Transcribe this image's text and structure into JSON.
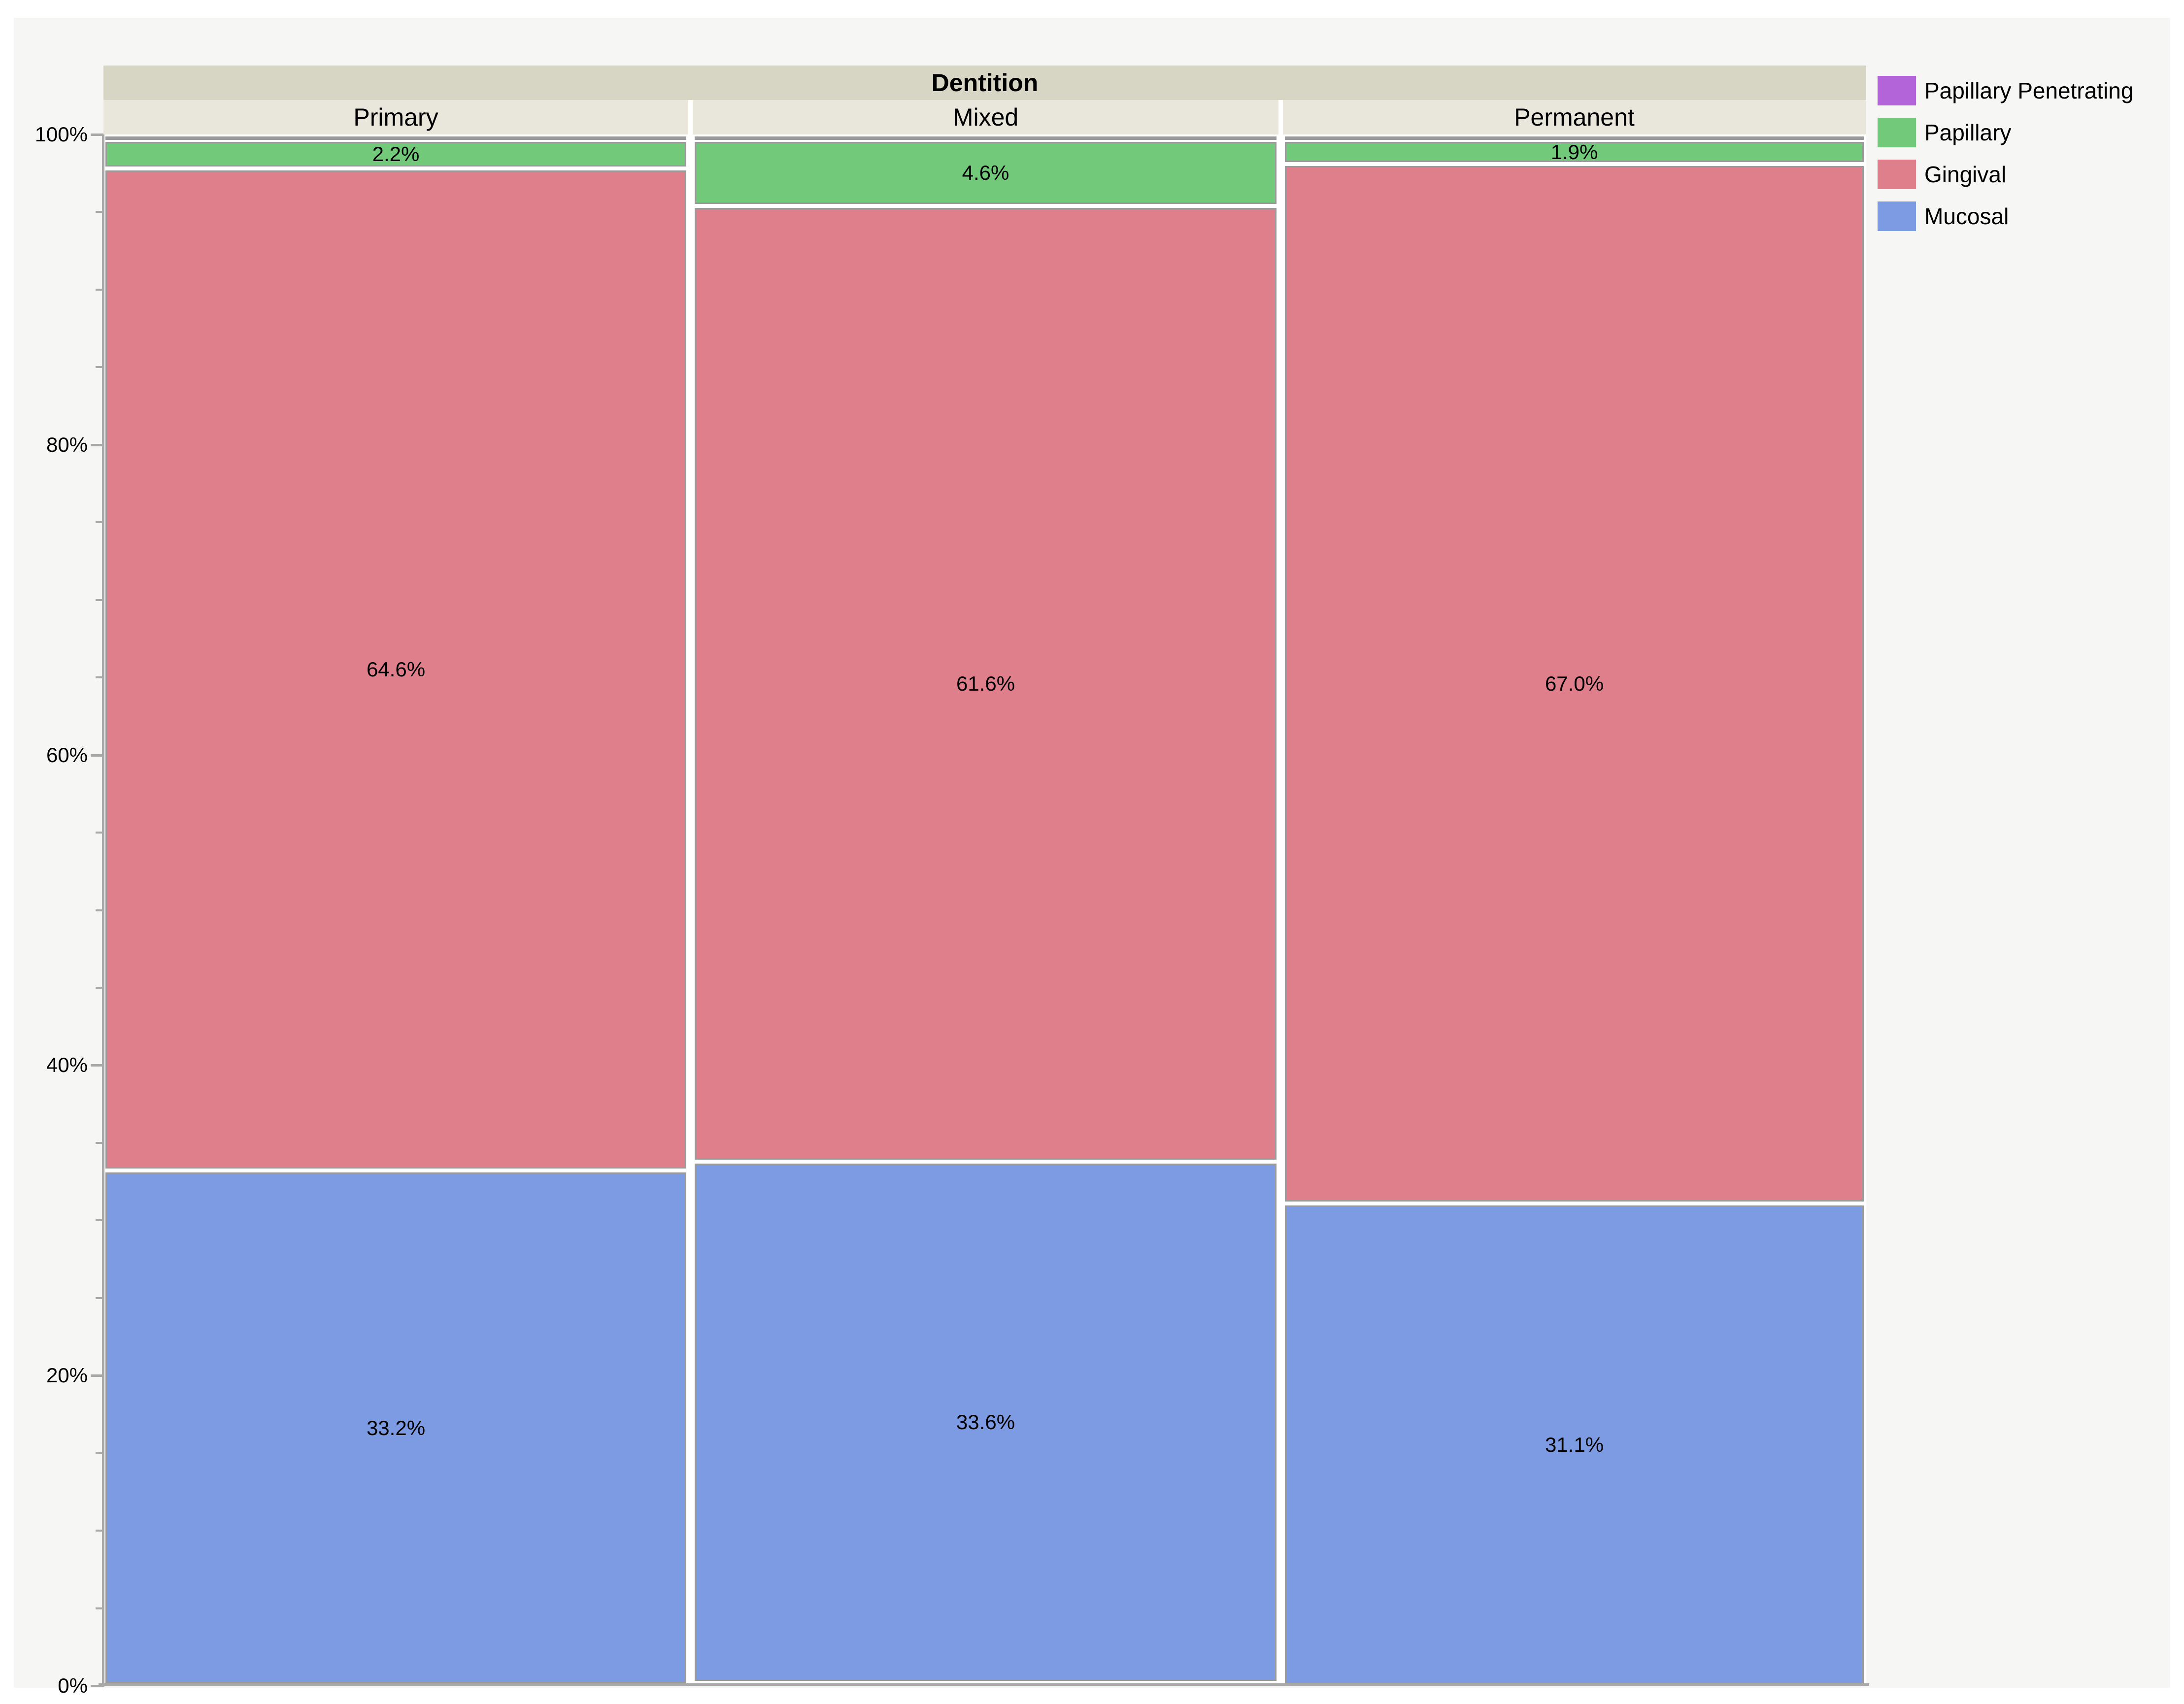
{
  "chart_data": {
    "type": "mosaic",
    "title": "Dentition",
    "categories": [
      "Primary",
      "Mixed",
      "Permanent"
    ],
    "column_fractions": [
      0.3335,
      0.3341,
      0.3324
    ],
    "series": [
      {
        "name": "Papillary Penetrating",
        "color": "#b464d9",
        "values": [
          0,
          0,
          0
        ],
        "labels": [
          "",
          "",
          ""
        ]
      },
      {
        "name": "Papillary",
        "color": "#72c97a",
        "values": [
          2.2,
          4.6,
          1.9
        ],
        "labels": [
          "2.2%",
          "4.6%",
          "1.9%"
        ]
      },
      {
        "name": "Gingival",
        "color": "#df7f8b",
        "values": [
          64.6,
          61.6,
          67.0
        ],
        "labels": [
          "64.6%",
          "61.6%",
          "67.0%"
        ]
      },
      {
        "name": "Mucosal",
        "color": "#7d9be2",
        "values": [
          33.2,
          33.6,
          31.1
        ],
        "labels": [
          "33.2%",
          "33.6%",
          "31.1%"
        ]
      }
    ],
    "y_axis": {
      "range": [
        0,
        100
      ],
      "tick_labels": [
        "0%",
        "20%",
        "40%",
        "60%",
        "80%",
        "100%"
      ],
      "major_tick_step_pct": 20,
      "minor_tick_step_pct": 5,
      "grid": "off"
    },
    "legend": {
      "position": "top-right",
      "items": [
        {
          "label": "Papillary Penetrating",
          "color": "#b464d9"
        },
        {
          "label": "Papillary",
          "color": "#72c97a"
        },
        {
          "label": "Gingival",
          "color": "#df7f8b"
        },
        {
          "label": "Mucosal",
          "color": "#7d9be2"
        }
      ]
    }
  },
  "colors": {
    "panel_bg": "#f6f6f4",
    "plot_bg": "#ffffff",
    "title_band_bg": "#d7d5c4",
    "header_band_bg": "#e9e7dc",
    "segment_border": "#9a9a9a",
    "axis": "#a8a8a8",
    "text": "#000000"
  }
}
